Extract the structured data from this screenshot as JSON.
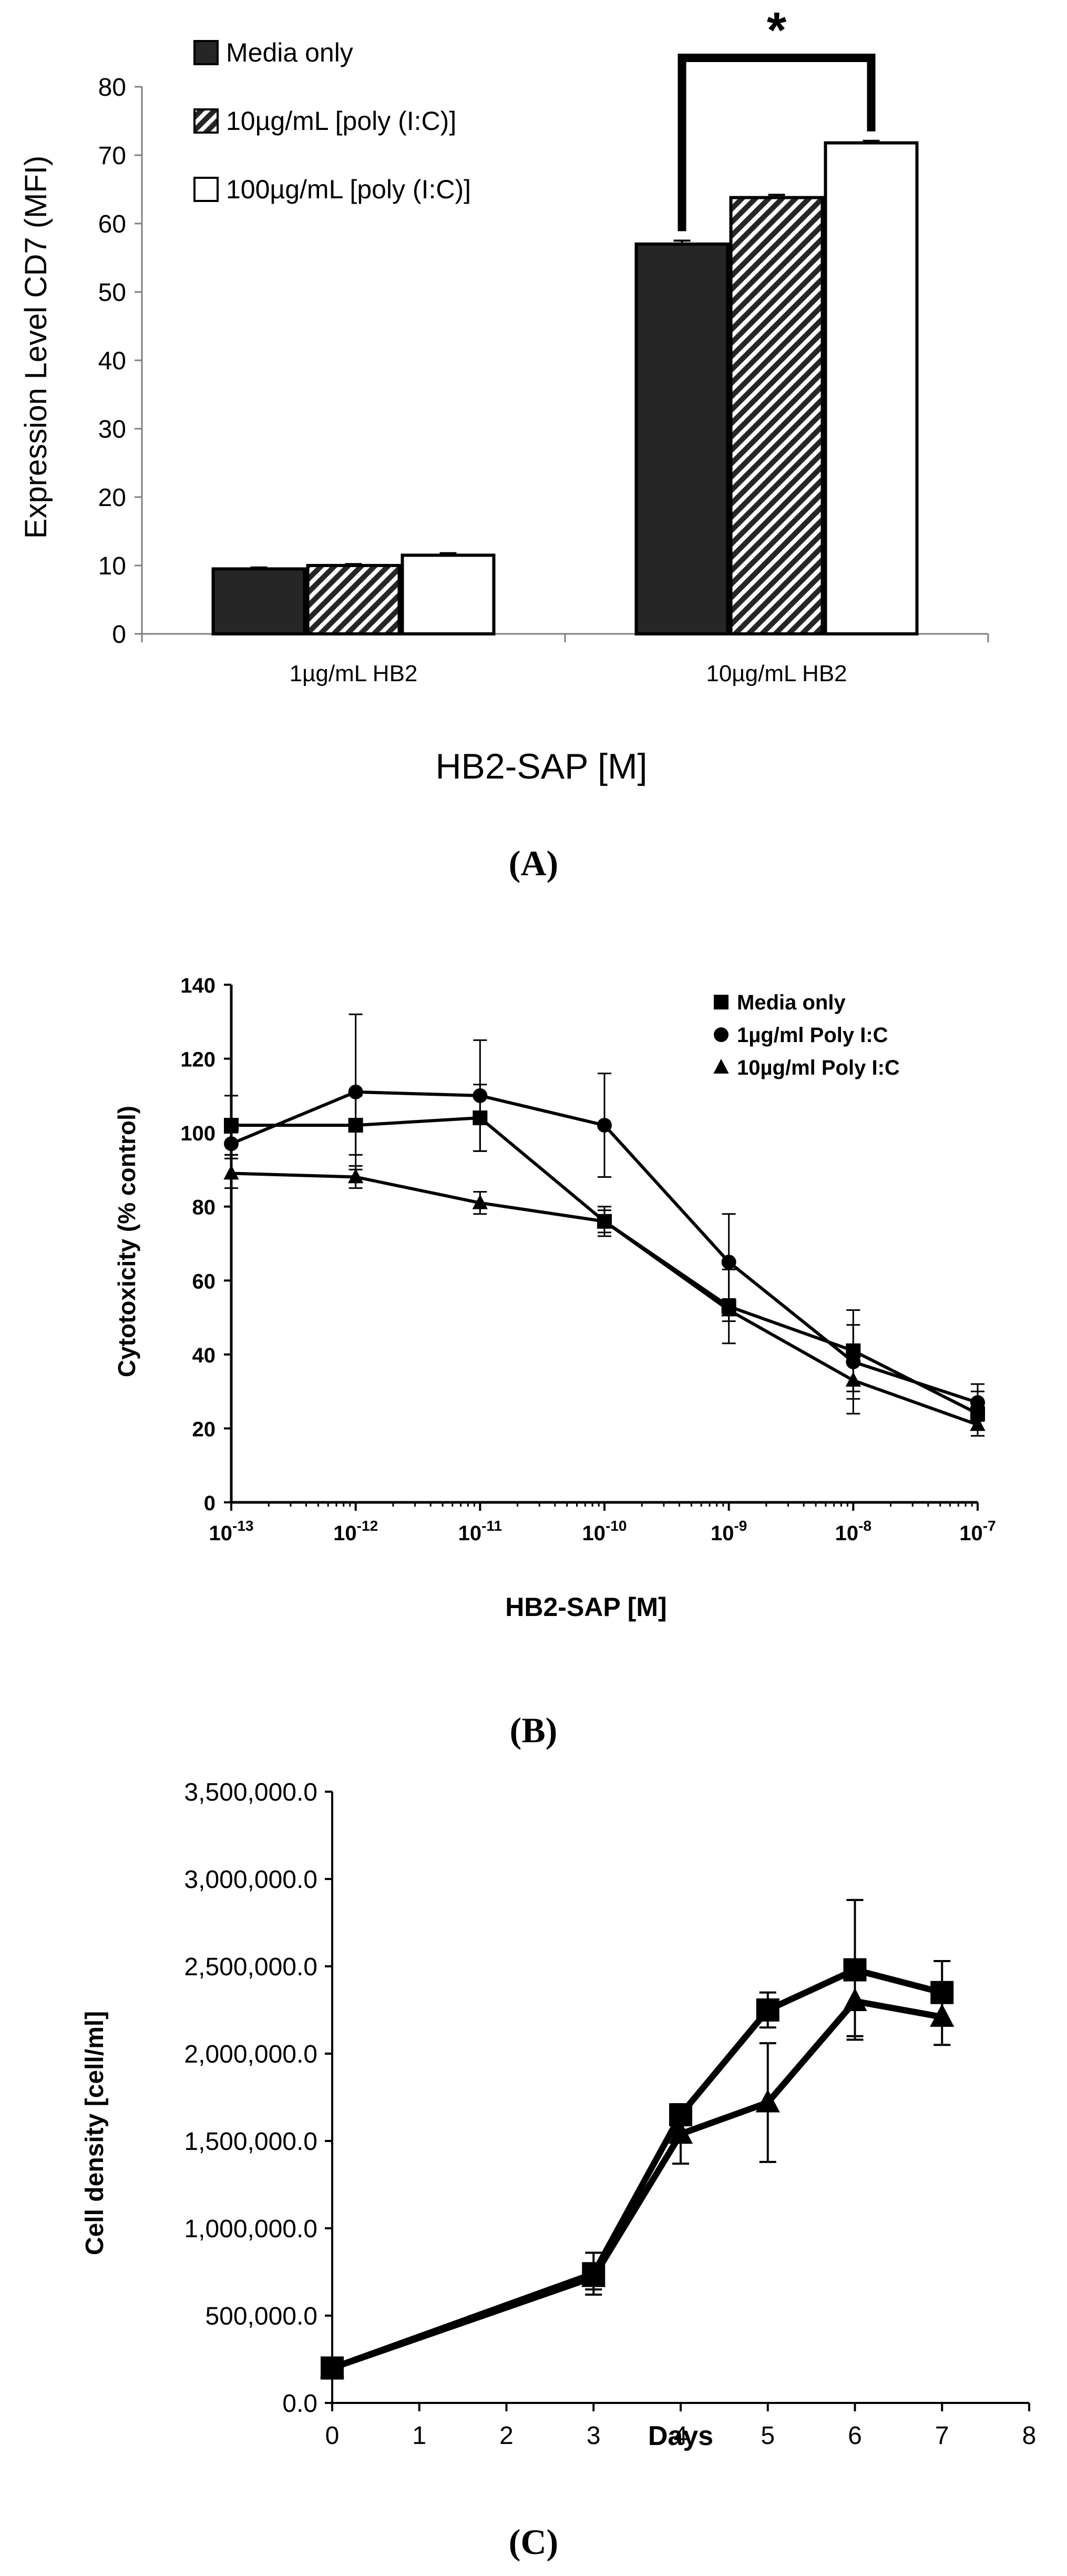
{
  "panel_captions": [
    "(A)",
    "(B)",
    "(C)"
  ],
  "chart_data": [
    {
      "type": "bar",
      "panel": "A",
      "title": "",
      "ylabel": "Expression Level CD7 (MFI)",
      "xlabel": "HB2-SAP [M]",
      "ylim": [
        0,
        80
      ],
      "yticks": [
        0,
        10,
        20,
        30,
        40,
        50,
        60,
        70,
        80
      ],
      "categories": [
        "1µg/mL HB2",
        "10µg/mL HB2"
      ],
      "series": [
        {
          "name": "Media only",
          "values": [
            9.5,
            57.0
          ],
          "errors": [
            0.2,
            0.5
          ],
          "fill": "solid-dark",
          "color": "#262626"
        },
        {
          "name": "10µg/mL [poly (I:C)]",
          "values": [
            10.0,
            63.8
          ],
          "errors": [
            0.2,
            0.4
          ],
          "fill": "hatched",
          "color": "#262626"
        },
        {
          "name": "100µg/mL [poly (I:C)]",
          "values": [
            11.5,
            71.8
          ],
          "errors": [
            0.3,
            0.3
          ],
          "fill": "white",
          "color": "#ffffff"
        }
      ],
      "legend_position": "top-left",
      "annotations": [
        {
          "text": "*",
          "type": "significance-bracket",
          "between": [
            "Media only",
            "100µg/mL [poly (I:C)]"
          ],
          "category": "10µg/mL HB2"
        }
      ],
      "grid": false
    },
    {
      "type": "line",
      "panel": "B",
      "title": "",
      "ylabel": "Cytotoxicity (% control)",
      "xlabel": "HB2-SAP [M]",
      "xscale": "log",
      "x": [
        1e-13,
        1e-12,
        1e-11,
        1e-10,
        1e-09,
        1e-08,
        1e-07
      ],
      "xtick_labels": [
        {
          "base": "10",
          "exp": "-13"
        },
        {
          "base": "10",
          "exp": "-12"
        },
        {
          "base": "10",
          "exp": "-11"
        },
        {
          "base": "10",
          "exp": "-10"
        },
        {
          "base": "10",
          "exp": "-9"
        },
        {
          "base": "10",
          "exp": "-8"
        },
        {
          "base": "10",
          "exp": "-7"
        }
      ],
      "ylim": [
        0,
        140
      ],
      "yticks": [
        0,
        20,
        40,
        60,
        80,
        100,
        120,
        140
      ],
      "series": [
        {
          "name": "Media only",
          "marker": "square",
          "values": [
            102,
            102,
            104,
            76,
            53,
            41,
            24
          ],
          "errors": [
            8,
            8,
            9,
            4,
            10,
            11,
            6
          ]
        },
        {
          "name": "1µg/ml Poly I:C",
          "marker": "circle",
          "values": [
            97,
            111,
            110,
            102,
            65,
            38,
            27
          ],
          "errors": [
            3,
            21,
            15,
            14,
            13,
            10,
            5
          ]
        },
        {
          "name": "10µg/ml Poly I:C",
          "marker": "triangle",
          "values": [
            89,
            88,
            81,
            76,
            52,
            33,
            21
          ],
          "errors": [
            4,
            3,
            3,
            3,
            3,
            9,
            3
          ]
        }
      ],
      "legend_position": "top-right",
      "grid": false
    },
    {
      "type": "line",
      "panel": "C",
      "title": "",
      "ylabel": "Cell density [cell/ml]",
      "xlabel": "Days",
      "xlim": [
        0,
        8
      ],
      "xticks": [
        0,
        1,
        2,
        3,
        4,
        5,
        6,
        7,
        8
      ],
      "ylim": [
        0,
        3500000
      ],
      "yticks": [
        0,
        500000,
        1000000,
        1500000,
        2000000,
        2500000,
        3000000,
        3500000
      ],
      "ytick_labels": [
        "0.0",
        "500,000.0",
        "1,000,000.0",
        "1,500,000.0",
        "2,000,000.0",
        "2,500,000.0",
        "3,000,000.0",
        "3,500,000.0"
      ],
      "x": [
        0,
        3,
        4,
        5,
        6,
        7
      ],
      "series": [
        {
          "marker": "square",
          "values": [
            200000,
            740000,
            1650000,
            2250000,
            2480000,
            2350000
          ],
          "errors": [
            0,
            120000,
            0,
            100000,
            400000,
            180000
          ]
        },
        {
          "marker": "triangle",
          "values": [
            200000,
            720000,
            1540000,
            1720000,
            2300000,
            2210000
          ],
          "errors": [
            0,
            70000,
            170000,
            340000,
            200000,
            160000
          ]
        }
      ],
      "legend_position": "none",
      "grid": false
    }
  ]
}
